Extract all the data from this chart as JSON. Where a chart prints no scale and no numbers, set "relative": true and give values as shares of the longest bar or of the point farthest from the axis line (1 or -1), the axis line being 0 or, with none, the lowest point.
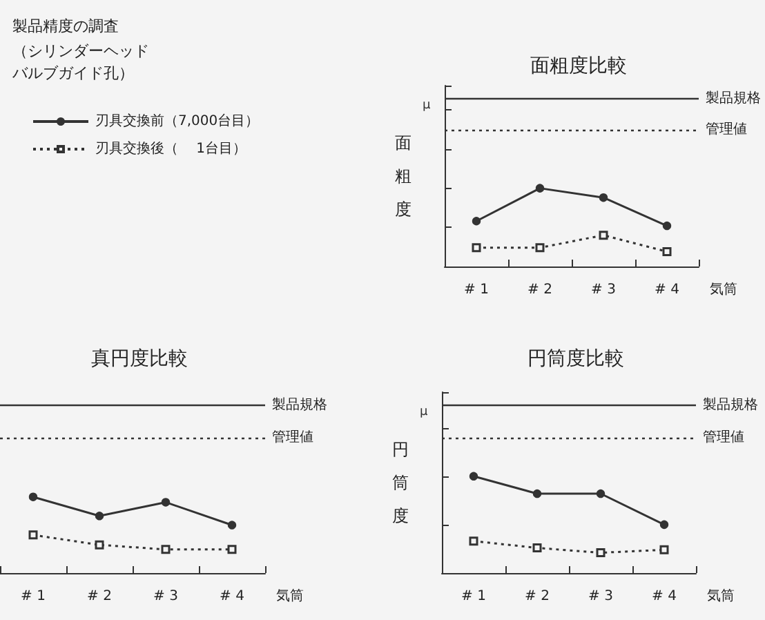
{
  "chart_data": [
    {
      "type": "other",
      "title": "製品精度の調査",
      "subtitle": "（シリンダーヘッドバルブガイド孔）"
    },
    {
      "type": "line",
      "title": "面粗度比較",
      "ylabel": "面粗度",
      "xlabel": "気筒",
      "annotations": [
        "μ"
      ],
      "relative": true,
      "legend": "left",
      "categories": [
        "# 1",
        "# 2",
        "# 3",
        "# 4"
      ],
      "series": [
        {
          "name": "刃具交換前（7,000台目）",
          "color": "#333333",
          "marker": "circle",
          "line_style": "solid",
          "values": [
            0.58,
            1,
            0.88,
            0.52
          ]
        },
        {
          "name": "刃具交換後（　 1台目）",
          "color": "#333333",
          "marker": "square",
          "line_style": "dotted",
          "values": [
            0.24,
            0.24,
            0.4,
            0.19
          ]
        }
      ],
      "ref_lines": [
        {
          "axis": "y",
          "value": 2.14,
          "label": "製品規格",
          "line_style": "solid",
          "color": "#333333"
        },
        {
          "axis": "y",
          "value": 1.75,
          "label": "管理値",
          "line_style": "dotted",
          "color": "#333333"
        }
      ]
    },
    {
      "type": "line",
      "title": "真円度比較",
      "xlabel": "気筒",
      "relative": true,
      "categories": [
        "# 1",
        "# 2",
        "# 3",
        "# 4"
      ],
      "series": [
        {
          "color": "#333333",
          "marker": "circle",
          "line_style": "solid",
          "values": [
            1,
            0.75,
            0.93,
            0.63
          ]
        },
        {
          "color": "#333333",
          "marker": "square",
          "line_style": "dotted",
          "values": [
            0.5,
            0.37,
            0.31,
            0.31
          ]
        }
      ],
      "ref_lines": [
        {
          "axis": "y",
          "value": 2.2,
          "label": "製品規格",
          "line_style": "solid",
          "color": "#333333"
        },
        {
          "axis": "y",
          "value": 1.78,
          "label": "管理値",
          "line_style": "dotted",
          "color": "#333333"
        }
      ]
    },
    {
      "type": "line",
      "title": "円筒度比較",
      "ylabel": "円筒度",
      "xlabel": "気筒",
      "annotations": [
        "μ"
      ],
      "relative": true,
      "categories": [
        "# 1",
        "# 2",
        "# 3",
        "# 4"
      ],
      "series": [
        {
          "color": "#333333",
          "marker": "circle",
          "line_style": "solid",
          "values": [
            1,
            0.82,
            0.82,
            0.5
          ]
        },
        {
          "color": "#333333",
          "marker": "square",
          "line_style": "dotted",
          "values": [
            0.33,
            0.26,
            0.21,
            0.24
          ]
        }
      ],
      "ref_lines": [
        {
          "axis": "y",
          "value": 1.73,
          "label": "製品規格",
          "line_style": "solid",
          "color": "#333333"
        },
        {
          "axis": "y",
          "value": 1.4,
          "label": "管理値",
          "line_style": "dotted",
          "color": "#333333"
        }
      ]
    }
  ]
}
